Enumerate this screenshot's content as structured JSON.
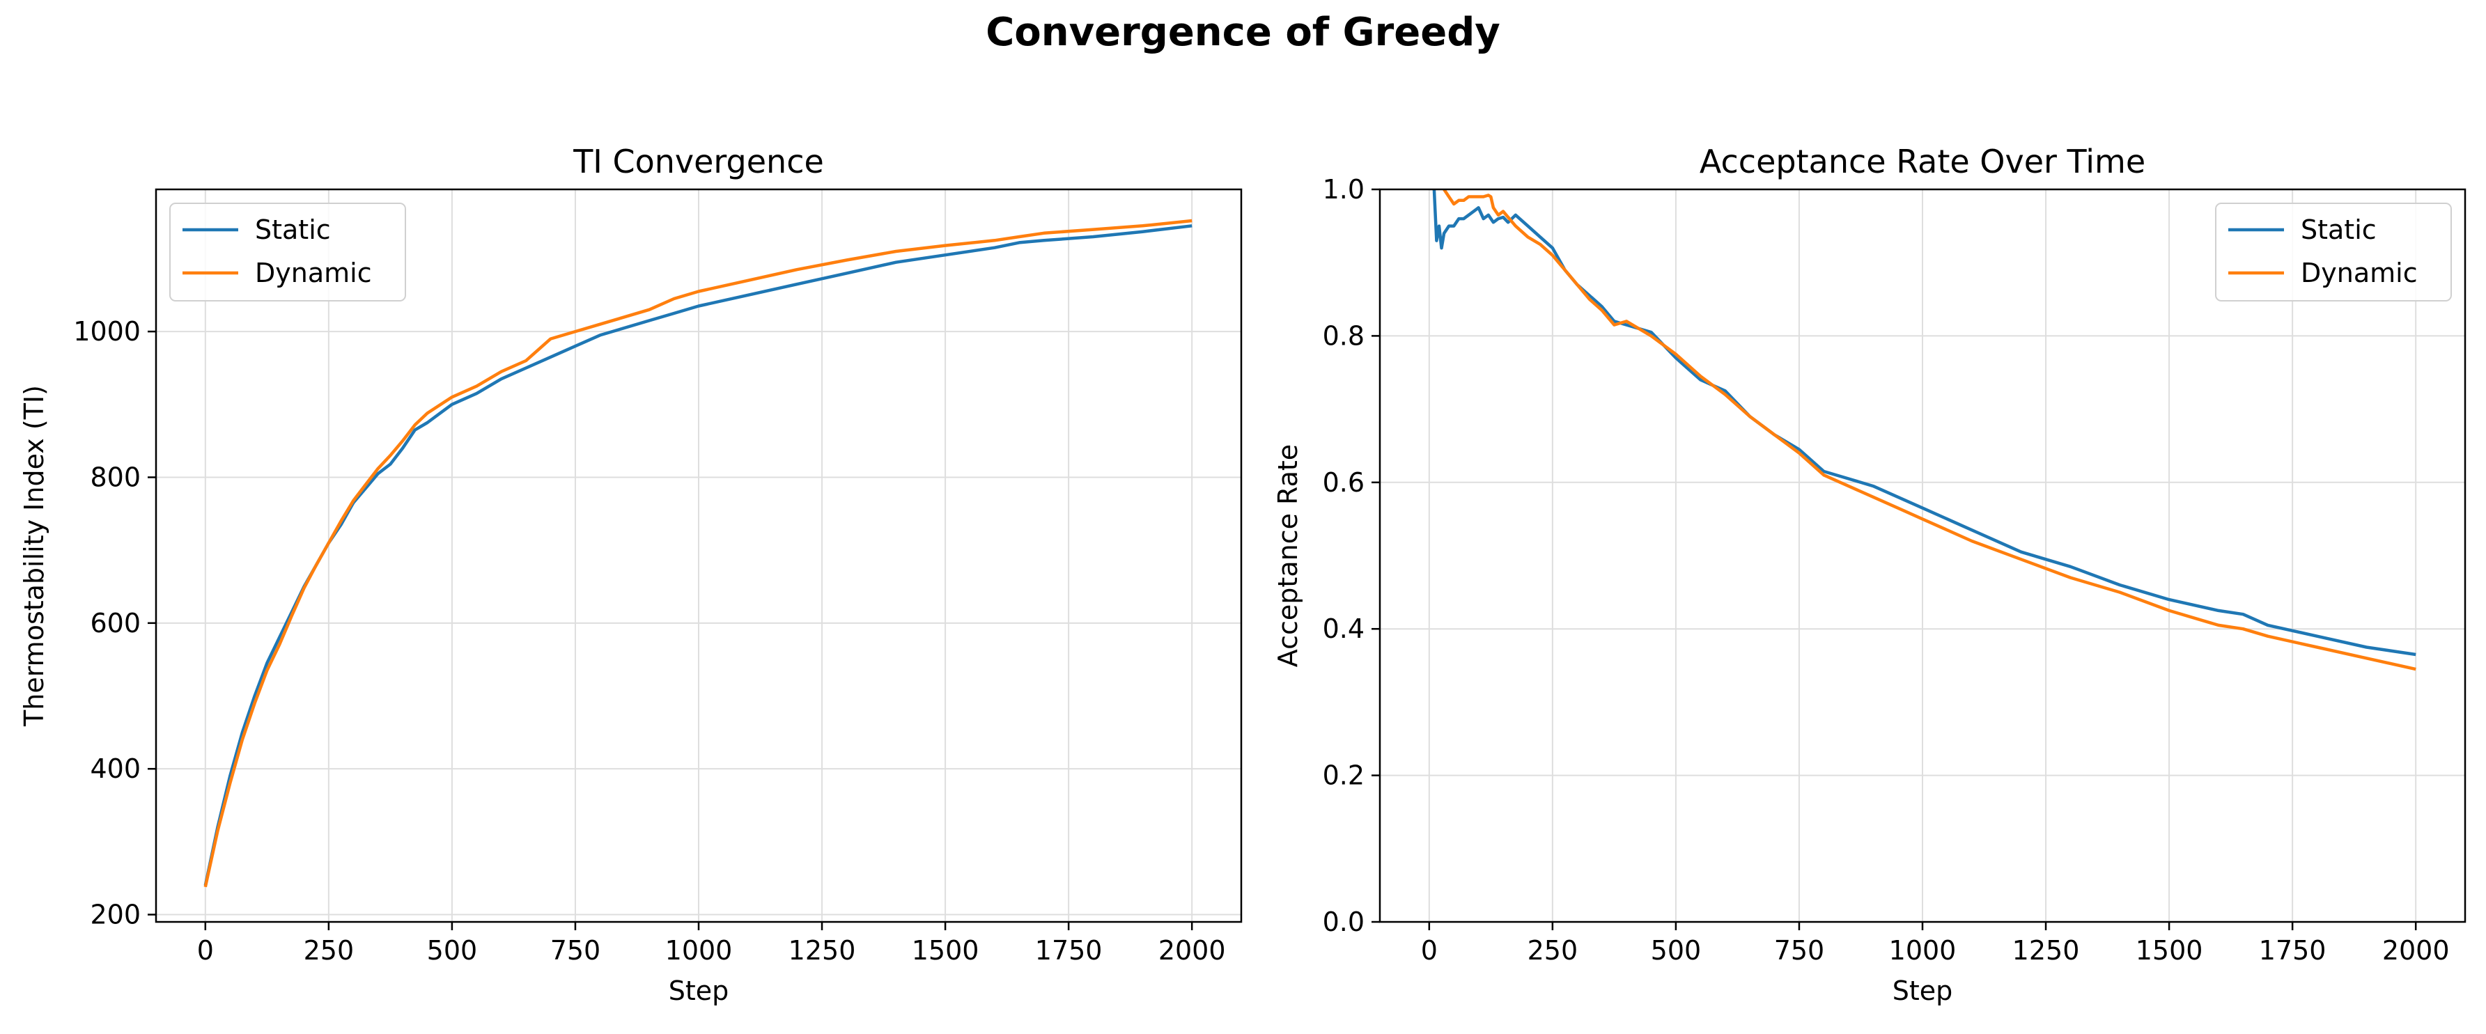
{
  "figure": {
    "suptitle": "Convergence of Greedy"
  },
  "colors": {
    "static": "#1f77b4",
    "dynamic": "#ff7f0e",
    "grid": "#dedede",
    "axis": "#000000"
  },
  "chart_data": [
    {
      "type": "line",
      "title": "TI Convergence",
      "xlabel": "Step",
      "ylabel": "Thermostability Index (TI)",
      "xlim": [
        -100,
        2100
      ],
      "ylim": [
        190,
        1195
      ],
      "xticks": [
        0,
        250,
        500,
        750,
        1000,
        1250,
        1500,
        1750,
        2000
      ],
      "yticks": [
        200,
        400,
        600,
        800,
        1000
      ],
      "grid": true,
      "legend": "top-left",
      "series": [
        {
          "name": "Static",
          "x": [
            0,
            25,
            50,
            75,
            100,
            125,
            150,
            175,
            200,
            225,
            250,
            275,
            300,
            325,
            350,
            375,
            400,
            425,
            450,
            500,
            550,
            600,
            650,
            700,
            750,
            800,
            850,
            900,
            950,
            1000,
            1100,
            1200,
            1300,
            1400,
            1500,
            1600,
            1650,
            1700,
            1800,
            1900,
            2000
          ],
          "y": [
            240,
            320,
            390,
            450,
            500,
            545,
            580,
            615,
            650,
            680,
            710,
            735,
            765,
            785,
            805,
            818,
            840,
            865,
            875,
            900,
            915,
            935,
            950,
            965,
            980,
            995,
            1005,
            1015,
            1025,
            1035,
            1050,
            1065,
            1080,
            1095,
            1105,
            1115,
            1122,
            1125,
            1130,
            1137,
            1145
          ]
        },
        {
          "name": "Dynamic",
          "x": [
            0,
            25,
            50,
            75,
            100,
            125,
            150,
            175,
            200,
            225,
            250,
            275,
            300,
            325,
            350,
            375,
            400,
            425,
            450,
            500,
            550,
            600,
            650,
            700,
            750,
            800,
            850,
            900,
            950,
            1000,
            1100,
            1200,
            1300,
            1400,
            1500,
            1600,
            1650,
            1700,
            1800,
            1900,
            2000
          ],
          "y": [
            238,
            315,
            380,
            440,
            490,
            535,
            570,
            610,
            648,
            680,
            710,
            740,
            768,
            790,
            812,
            830,
            850,
            872,
            888,
            910,
            925,
            945,
            960,
            990,
            1000,
            1010,
            1020,
            1030,
            1045,
            1055,
            1070,
            1085,
            1098,
            1110,
            1118,
            1125,
            1130,
            1135,
            1140,
            1145,
            1152
          ]
        }
      ]
    },
    {
      "type": "line",
      "title": "Acceptance Rate Over Time",
      "xlabel": "Step",
      "ylabel": "Acceptance Rate",
      "xlim": [
        -100,
        2100
      ],
      "ylim": [
        0,
        1.0
      ],
      "xticks": [
        0,
        250,
        500,
        750,
        1000,
        1250,
        1500,
        1750,
        2000
      ],
      "yticks": [
        0.0,
        0.2,
        0.4,
        0.6,
        0.8,
        1.0
      ],
      "ytick_labels": [
        "0.0",
        "0.2",
        "0.4",
        "0.6",
        "0.8",
        "1.0"
      ],
      "grid": true,
      "legend": "top-right",
      "series": [
        {
          "name": "Static",
          "x": [
            10,
            15,
            20,
            25,
            30,
            40,
            50,
            60,
            70,
            80,
            90,
            100,
            110,
            120,
            130,
            140,
            150,
            160,
            175,
            200,
            225,
            250,
            275,
            300,
            325,
            350,
            375,
            400,
            425,
            450,
            500,
            550,
            600,
            650,
            700,
            750,
            800,
            850,
            900,
            950,
            1000,
            1100,
            1200,
            1300,
            1400,
            1500,
            1600,
            1650,
            1700,
            1800,
            1900,
            2000
          ],
          "y": [
            1.0,
            0.93,
            0.95,
            0.92,
            0.94,
            0.95,
            0.95,
            0.96,
            0.96,
            0.965,
            0.97,
            0.975,
            0.96,
            0.965,
            0.955,
            0.96,
            0.962,
            0.955,
            0.965,
            0.95,
            0.935,
            0.92,
            0.89,
            0.87,
            0.855,
            0.84,
            0.82,
            0.815,
            0.81,
            0.805,
            0.77,
            0.74,
            0.725,
            0.69,
            0.665,
            0.645,
            0.615,
            0.605,
            0.595,
            0.58,
            0.565,
            0.535,
            0.505,
            0.485,
            0.46,
            0.44,
            0.425,
            0.42,
            0.405,
            0.39,
            0.375,
            0.365
          ]
        },
        {
          "name": "Dynamic",
          "x": [
            30,
            40,
            50,
            60,
            70,
            80,
            90,
            100,
            110,
            120,
            125,
            130,
            140,
            150,
            175,
            200,
            225,
            250,
            275,
            300,
            325,
            350,
            375,
            400,
            425,
            450,
            500,
            550,
            600,
            650,
            700,
            750,
            800,
            850,
            900,
            950,
            1000,
            1100,
            1200,
            1300,
            1400,
            1500,
            1600,
            1650,
            1700,
            1800,
            1900,
            2000
          ],
          "y": [
            1.0,
            0.99,
            0.98,
            0.985,
            0.985,
            0.99,
            0.99,
            0.99,
            0.99,
            0.992,
            0.99,
            0.975,
            0.965,
            0.97,
            0.95,
            0.935,
            0.925,
            0.91,
            0.89,
            0.87,
            0.85,
            0.835,
            0.815,
            0.82,
            0.81,
            0.8,
            0.775,
            0.745,
            0.72,
            0.69,
            0.665,
            0.64,
            0.61,
            0.595,
            0.58,
            0.565,
            0.55,
            0.52,
            0.495,
            0.47,
            0.45,
            0.425,
            0.405,
            0.4,
            0.39,
            0.375,
            0.36,
            0.345
          ]
        }
      ]
    }
  ]
}
